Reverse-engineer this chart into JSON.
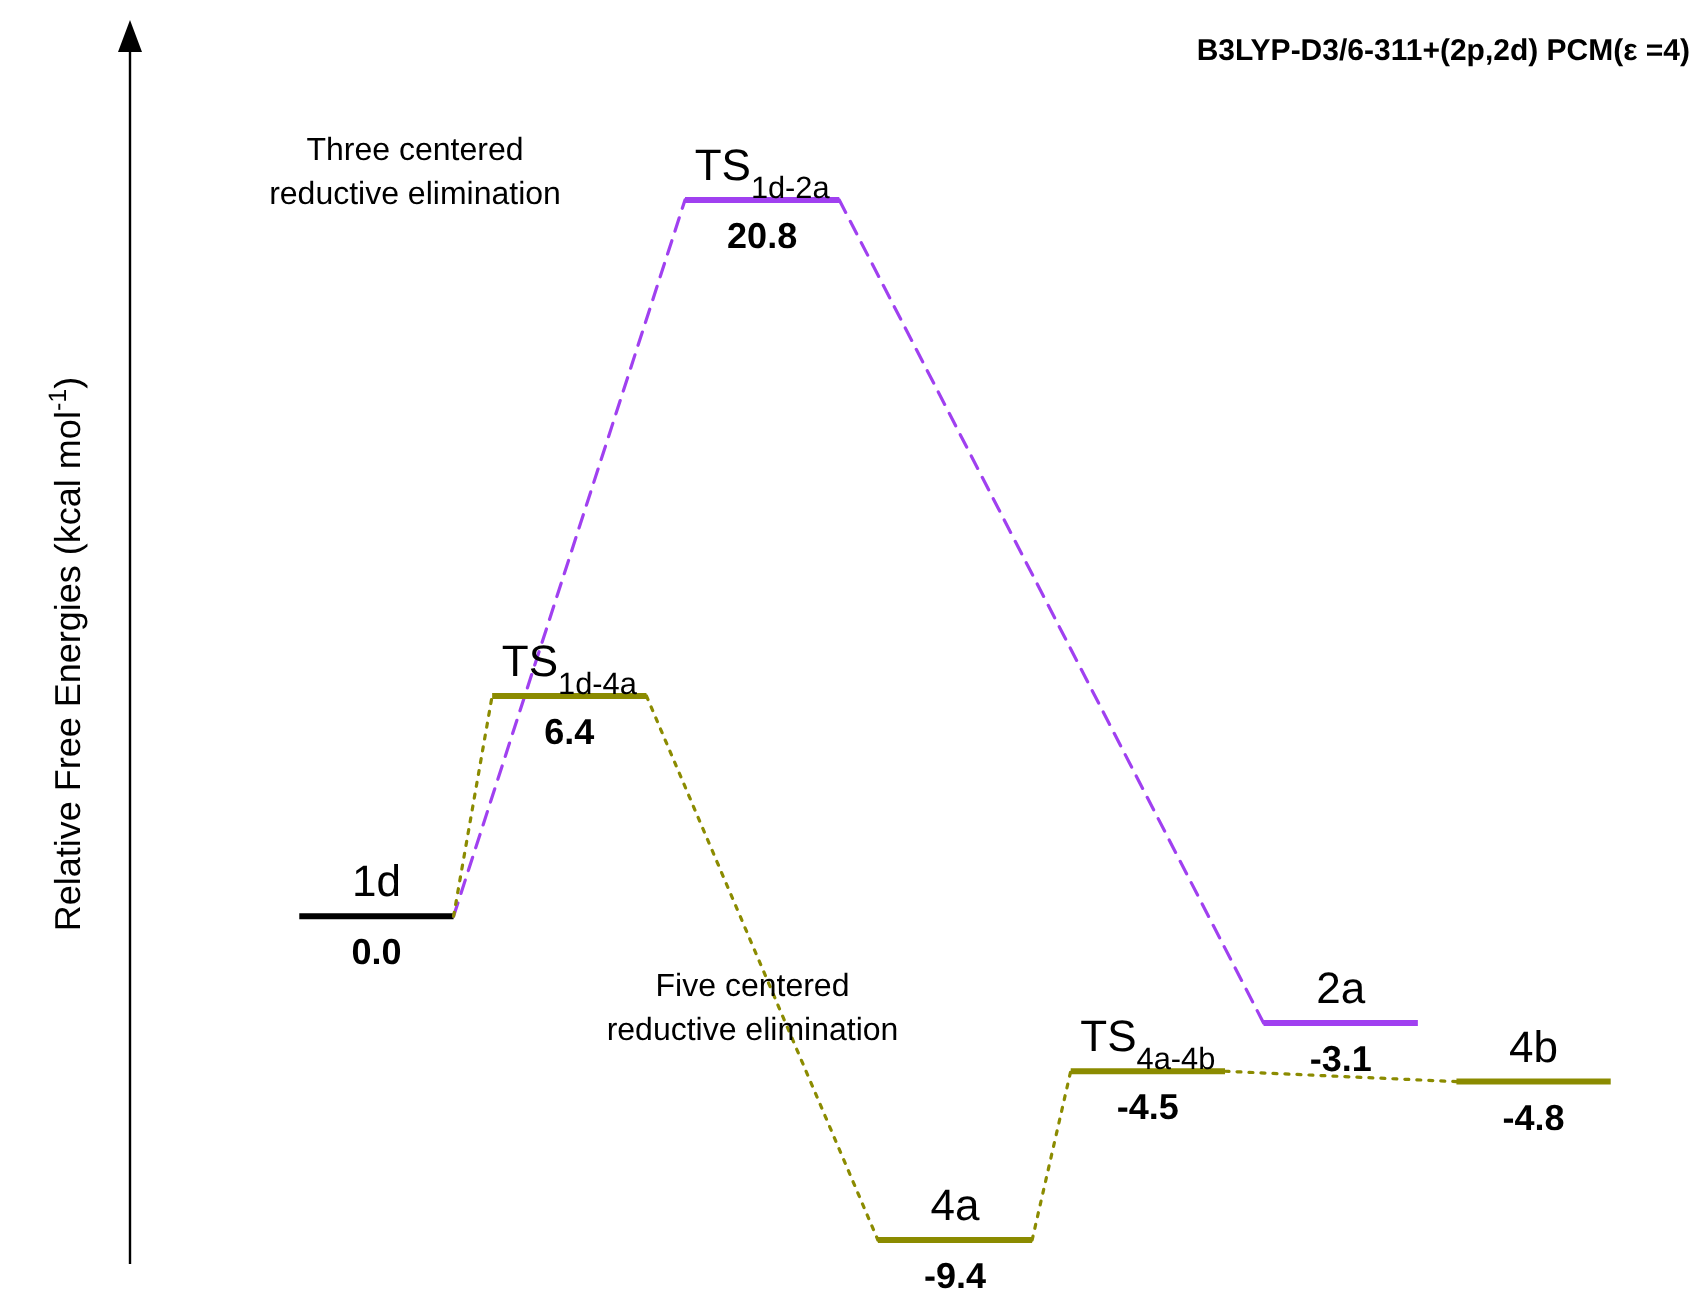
{
  "chart_data": {
    "type": "other",
    "annotations": [
      "Three centered reductive elimination",
      "Five centered reductive elimination"
    ],
    "title": "B3LYP-D3/6-311+(2p,2d) PCM(ε =4)",
    "ylabel": "Relative Free Energies (kcal mol$^{-1}$)",
    "categories": [
      "1d",
      "TS$_{1d-4a}$",
      "TS$_{1d-2a}$",
      "4a",
      "TS$_{4a-4b}$",
      "2a",
      "4b"
    ],
    "series": [
      {
        "color": "#000000",
        "line_style": "solid",
        "values": [
          0.0,
          null,
          null,
          null,
          null,
          null,
          null
        ],
        "value_labels": [
          "0.0",
          null,
          null,
          null,
          null,
          null,
          null
        ]
      },
      {
        "color": "#a040f0",
        "line_style": "dashed",
        "values": [
          null,
          null,
          20.8,
          null,
          null,
          -3.1,
          null
        ],
        "value_labels": [
          null,
          null,
          "20.8",
          null,
          null,
          "-3.1",
          null
        ]
      },
      {
        "color": "#8b8b00",
        "line_style": "dotted",
        "values": [
          null,
          6.4,
          null,
          -9.4,
          -4.5,
          null,
          -4.8
        ],
        "value_labels": [
          null,
          "6.4",
          null,
          "-9.4",
          "-4.5",
          null,
          "-4.8"
        ]
      }
    ]
  }
}
